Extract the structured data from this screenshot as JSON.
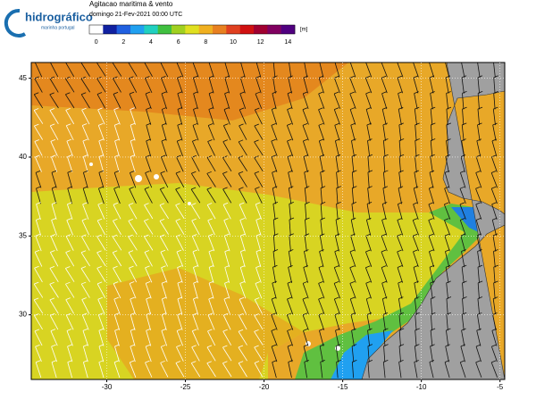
{
  "header": {
    "logo": "hidrográfico",
    "logo_sub": "marinha portugal",
    "title": "Agitacao maritima & vento",
    "subtitle": "domingo 21-Fev-2021 00:00 UTC"
  },
  "colorbar": {
    "unit": "[m]",
    "ticks": [
      0,
      2,
      4,
      6,
      8,
      10,
      12,
      14
    ],
    "colors": [
      "#ffffff",
      "#1020a0",
      "#2060e0",
      "#20a0f0",
      "#20d0c0",
      "#40c040",
      "#a0d020",
      "#e0e020",
      "#f0b020",
      "#e88020",
      "#e04020",
      "#d01010",
      "#a00030",
      "#800060",
      "#500080"
    ]
  },
  "map": {
    "xlim": [
      -34.8,
      -4.7
    ],
    "ylim": [
      25.9,
      46
    ],
    "xticks": [
      -30,
      -25,
      -20,
      -15,
      -10,
      -5
    ],
    "yticks": [
      30,
      35,
      40,
      45
    ]
  }
}
